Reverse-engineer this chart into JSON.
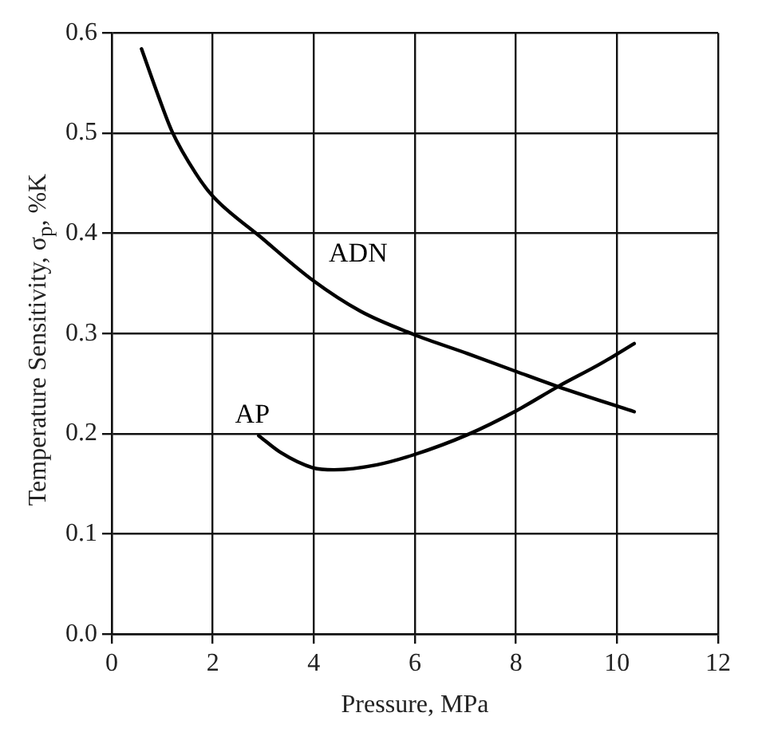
{
  "chart_data": {
    "type": "line",
    "xlabel": "Pressure, MPa",
    "ylabel": "Temperature Sensitivity, σ$_{p}$, %K",
    "xlim": [
      0,
      12
    ],
    "xticks": [
      0,
      2,
      4,
      6,
      8,
      10,
      12
    ],
    "ylim": [
      0,
      0.6
    ],
    "yticks": [
      {
        "value": 0,
        "label": "0.0"
      },
      {
        "value": 0.1,
        "label": "0.1"
      },
      {
        "value": 0.2,
        "label": "0.2"
      },
      {
        "value": 0.3,
        "label": "0.3"
      },
      {
        "value": 0.4,
        "label": "0.4"
      },
      {
        "value": 0.5,
        "label": "0.5"
      },
      {
        "value": 0.6,
        "label": "0.6"
      }
    ],
    "grid": true,
    "legend": false,
    "marker": "none",
    "line_style": "solid",
    "series": [
      {
        "name": "ADN",
        "color": "#000000",
        "x": [
          0.59,
          0.93,
          1.19,
          1.66,
          2.0,
          2.93,
          3.98,
          4.93,
          5.98,
          7.04,
          8.01,
          8.83,
          10.34
        ],
        "values": [
          0.584,
          0.536,
          0.502,
          0.46,
          0.437,
          0.397,
          0.353,
          0.322,
          0.299,
          0.28,
          0.262,
          0.247,
          0.222
        ]
      },
      {
        "name": "AP",
        "color": "#000000",
        "x": [
          2.91,
          3.35,
          3.98,
          4.4,
          5.25,
          5.98,
          7.04,
          8.01,
          8.83,
          9.68,
          10.34
        ],
        "values": [
          0.198,
          0.181,
          0.166,
          0.164,
          0.169,
          0.179,
          0.199,
          0.223,
          0.247,
          0.27,
          0.29
        ]
      }
    ]
  }
}
